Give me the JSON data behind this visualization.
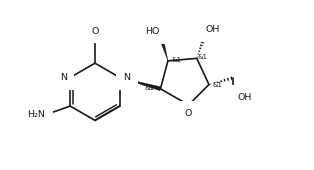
{
  "bg_color": "#ffffff",
  "line_color": "#1a1a1a",
  "line_width": 1.2,
  "font_size": 6.8,
  "stereo_font_size": 5.0,
  "fig_width": 3.14,
  "fig_height": 1.7,
  "dpi": 100,
  "xlim": [
    -0.1,
    3.14
  ],
  "ylim": [
    0.0,
    1.7
  ]
}
